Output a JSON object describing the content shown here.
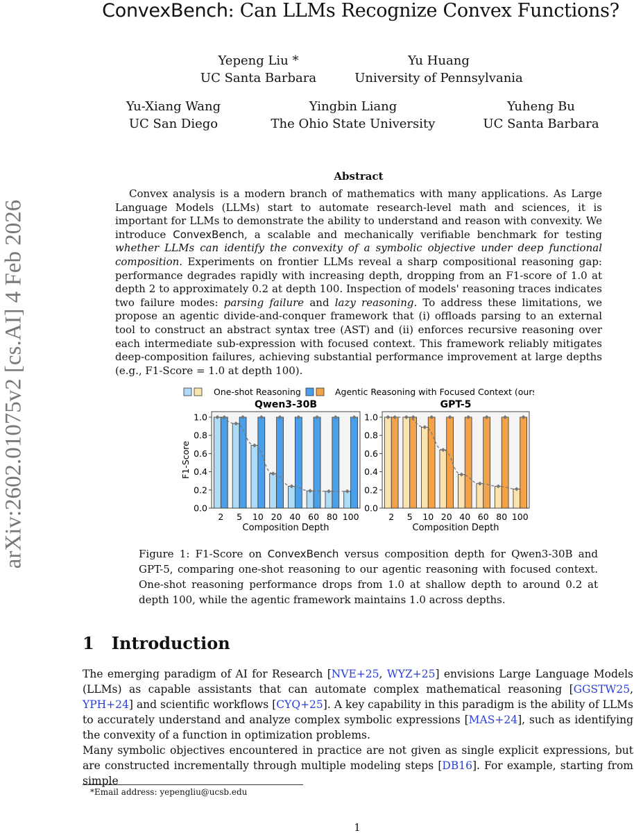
{
  "title": {
    "bench": "ConvexBench",
    "rest": ": Can LLMs Recognize Convex Functions?"
  },
  "authors": [
    {
      "name": "Yepeng Liu *",
      "affil": "UC Santa Barbara"
    },
    {
      "name": "Yu Huang",
      "affil": "University of Pennsylvania"
    },
    {
      "name": "Yu-Xiang Wang",
      "affil": "UC San Diego"
    },
    {
      "name": "Yingbin Liang",
      "affil": "The Ohio State University"
    },
    {
      "name": "Yuheng Bu",
      "affil": "UC Santa Barbara"
    }
  ],
  "stamp": "arXiv:2602.01075v2  [cs.AI]  4 Feb 2026",
  "abstract": {
    "heading": "Abstract",
    "p1": "Convex analysis is a modern branch of mathematics with many applications. As Large Language Models (LLMs) start to automate research-level math and sciences, it is important for LLMs to demonstrate the ability to understand and reason with convexity. We introduce ",
    "bench": "ConvexBench",
    "p2": ", a scalable and mechanically verifiable benchmark for testing ",
    "em1": "whether LLMs can identify the convexity of a symbolic objective under deep functional composition.",
    "p3": " Experiments on frontier LLMs reveal a sharp compositional reasoning gap: performance degrades rapidly with increasing depth, dropping from an F1-score of 1.0 at depth 2 to approximately 0.2 at depth 100. Inspection of models' reasoning traces indicates two failure modes: ",
    "em2": "parsing failure",
    "p4": " and ",
    "em3": "lazy reasoning.",
    "p5": " To address these limitations, we propose an agentic divide-and-conquer framework that (i) offloads parsing to an external tool to construct an abstract syntax tree (AST) and (ii) enforces recursive reasoning over each intermediate sub-expression with focused context. This framework reliably mitigates deep-composition failures, achieving substantial performance improvement at large depths (e.g., F1-Score = 1.0 at depth 100)."
  },
  "chart_data": [
    {
      "type": "bar",
      "title": "Qwen3-30B",
      "xlabel": "Composition Depth",
      "ylabel": "F1-Score",
      "ylim": [
        0,
        1
      ],
      "yticks": [
        "0.0",
        "0.2",
        "0.4",
        "0.6",
        "0.8",
        "1.0"
      ],
      "categories": [
        "2",
        "5",
        "10",
        "20",
        "40",
        "60",
        "80",
        "100"
      ],
      "series": [
        {
          "name": "One-shot Reasoning",
          "values": [
            1.0,
            0.93,
            0.69,
            0.38,
            0.24,
            0.19,
            0.185,
            0.185
          ],
          "color": "#aedcf7"
        },
        {
          "name": "Agentic Reasoning with Focused Context (ours)",
          "values": [
            1,
            1,
            1,
            1,
            1,
            1,
            1,
            1
          ],
          "color": "#4a9fe8"
        }
      ]
    },
    {
      "type": "bar",
      "title": "GPT-5",
      "xlabel": "Composition Depth",
      "ylabel": "",
      "ylim": [
        0,
        1
      ],
      "yticks": [
        "0.0",
        "0.2",
        "0.4",
        "0.6",
        "0.8",
        "1.0"
      ],
      "categories": [
        "2",
        "5",
        "10",
        "20",
        "40",
        "60",
        "80",
        "100"
      ],
      "series": [
        {
          "name": "One-shot Reasoning",
          "values": [
            1.0,
            1.0,
            0.89,
            0.64,
            0.37,
            0.27,
            0.24,
            0.21
          ],
          "color": "#fbe3ae"
        },
        {
          "name": "Agentic Reasoning with Focused Context (ours)",
          "values": [
            1,
            1,
            1,
            1,
            1,
            1,
            1,
            1
          ],
          "color": "#f3a24a"
        }
      ]
    }
  ],
  "legend": {
    "oneshot": "One-shot Reasoning",
    "agentic": "Agentic Reasoning with Focused Context (ours)"
  },
  "caption": {
    "a": "Figure 1: F1-Score on ",
    "bench": "ConvexBench",
    "b": " versus composition depth for Qwen3-30B and GPT-5, comparing one-shot reasoning to our agentic reasoning with focused context. One-shot reasoning performance drops from 1.0 at shallow depth to around 0.2 at depth 100, while the agentic framework maintains 1.0 across depths."
  },
  "section": {
    "number": "1",
    "title": "Introduction"
  },
  "intro": {
    "p1a": "The emerging paradigm of AI for Research [",
    "c1": "NVE+25",
    "s1": ", ",
    "c2": "WYZ+25",
    "p1b": "] envisions Large Language Models (LLMs) as capable assistants that can automate complex mathematical reasoning [",
    "c3": "GGSTW25",
    "s2": ", ",
    "c4": "YPH+24",
    "p1c": "] and scientific workflows [",
    "c5": "CYQ+25",
    "p1d": "]. A key capability in this paradigm is the ability of LLMs to accurately understand and analyze complex symbolic expressions [",
    "c6": "MAS+24",
    "p1e": "], such as identifying the convexity of a function in optimization problems.",
    "p2a": "Many symbolic objectives encountered in practice are not given as single explicit expressions, but are constructed incrementally through multiple modeling steps [",
    "c7": "DB16",
    "p2b": "]. For example, starting from simple"
  },
  "footnote": "*Email address: yepengliu@ucsb.edu",
  "page_number": "1"
}
